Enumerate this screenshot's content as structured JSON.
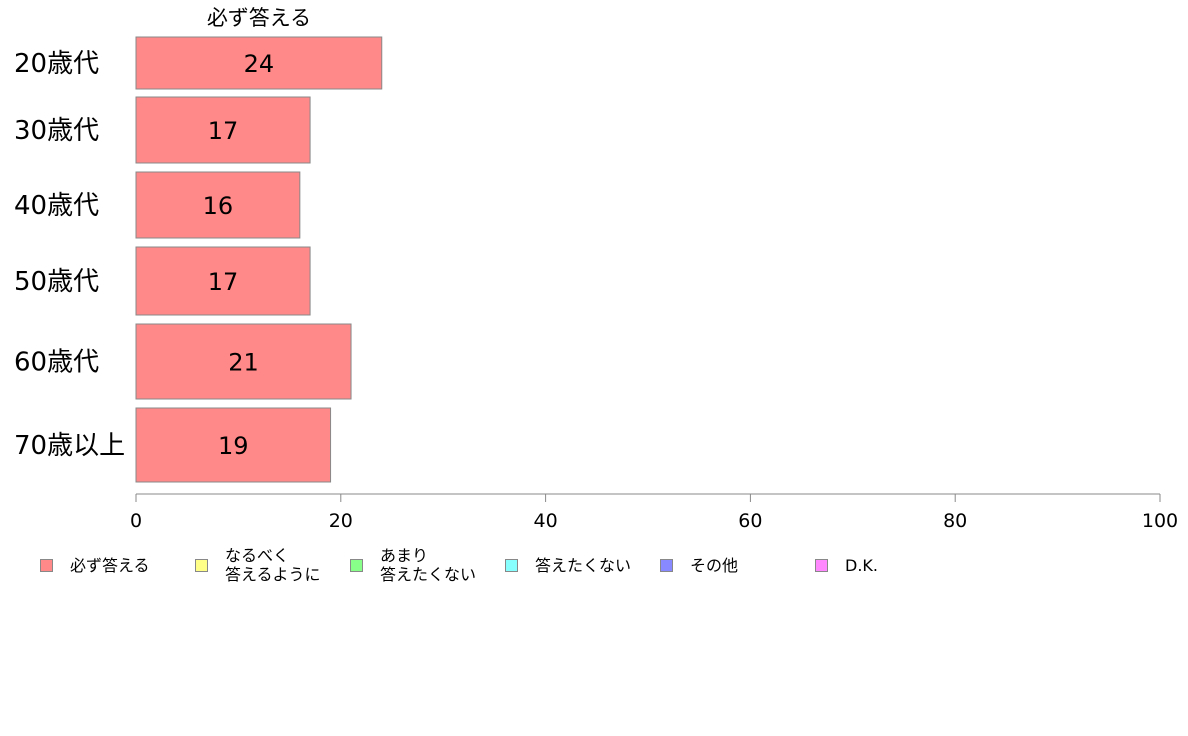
{
  "chart_data": {
    "type": "bar",
    "orientation": "horizontal",
    "categories": [
      "20歳代",
      "30歳代",
      "40歳代",
      "50歳代",
      "60歳代",
      "70歳以上"
    ],
    "series": [
      {
        "name": "必ず答える",
        "values": [
          24,
          17,
          16,
          17,
          21,
          19
        ],
        "color": "#ff8888"
      }
    ],
    "data_labels": [
      "24",
      "17",
      "16",
      "17",
      "21",
      "19"
    ],
    "x_ticks": [
      "0",
      "20",
      "40",
      "60",
      "80",
      "100"
    ],
    "xlim": [
      0,
      100
    ],
    "grid": false,
    "legend": {
      "placement": "bottom",
      "items": [
        {
          "label": "必ず答える",
          "color": "#ff8888"
        },
        {
          "label": "なるべく\n答えるように",
          "color": "#ffff88"
        },
        {
          "label": "あまり\n答えたくない",
          "color": "#88ff88"
        },
        {
          "label": "答えたくない",
          "color": "#88ffff"
        },
        {
          "label": "その他",
          "color": "#8888ff"
        },
        {
          "label": "D.K.",
          "color": "#ff88ff"
        }
      ]
    }
  }
}
